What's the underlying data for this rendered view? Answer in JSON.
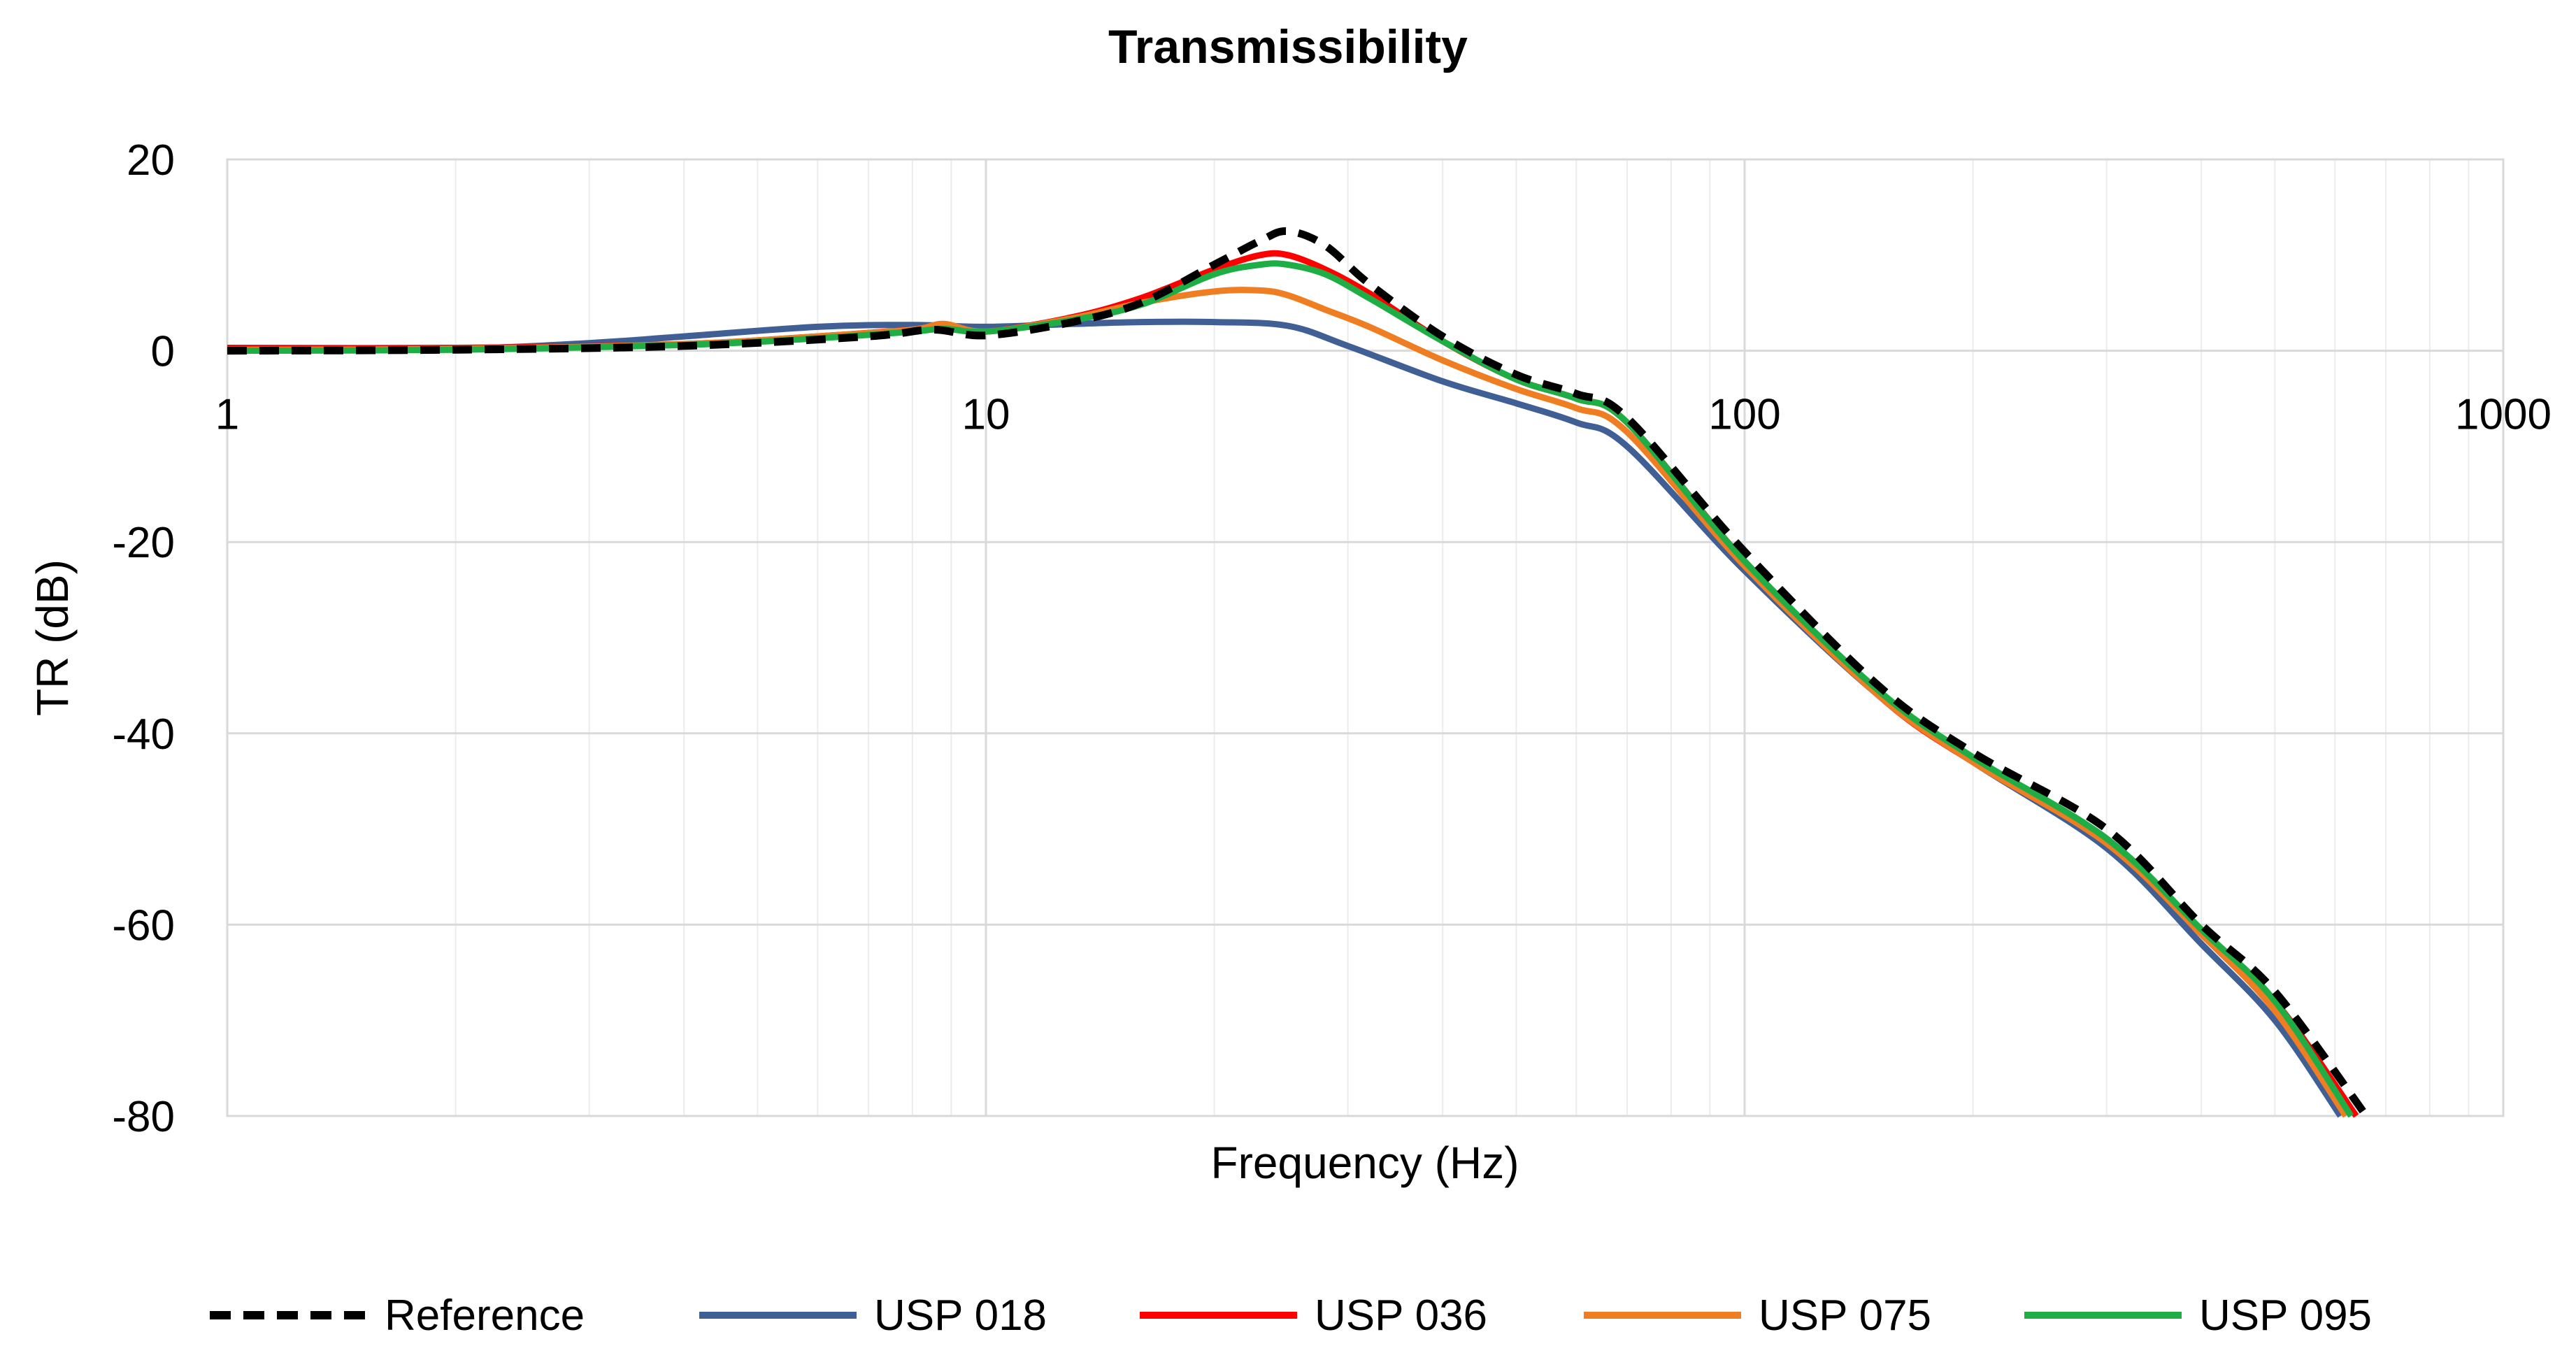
{
  "chart_data": {
    "type": "line",
    "title": "Transmissibility",
    "xlabel": "Frequency (Hz)",
    "ylabel": "TR (dB)",
    "xscale": "log",
    "xlim": [
      1,
      1000
    ],
    "ylim": [
      -80,
      20
    ],
    "x_ticks": [
      1,
      10,
      100,
      1000
    ],
    "x_tick_labels": [
      "1",
      "10",
      "100",
      "1000"
    ],
    "y_ticks": [
      20,
      0,
      -20,
      -40,
      -60,
      -80
    ],
    "y_tick_labels": [
      "20",
      "0",
      "-20",
      "-40",
      "-60",
      "-80"
    ],
    "grid": true,
    "legend_position": "bottom",
    "series": [
      {
        "name": "Reference",
        "color": "#000000",
        "style": "dashed",
        "x": [
          1,
          2,
          4,
          7,
          8.5,
          10,
          13,
          16,
          20,
          23,
          25,
          28,
          32,
          40,
          50,
          60,
          70,
          100,
          150,
          200,
          300,
          400,
          500,
          660
        ],
        "y": [
          0,
          0.1,
          0.5,
          1.5,
          2.2,
          1.6,
          3,
          5,
          9,
          11.5,
          12.5,
          11,
          7,
          1.5,
          -2.5,
          -4.5,
          -7,
          -21,
          -35,
          -42,
          -50,
          -60,
          -67,
          -80
        ]
      },
      {
        "name": "USP 018",
        "color": "#3f5f95",
        "style": "solid",
        "x": [
          1,
          2,
          3,
          4,
          6,
          8,
          10,
          13,
          16,
          20,
          25,
          30,
          40,
          50,
          60,
          70,
          100,
          150,
          200,
          300,
          400,
          500,
          610
        ],
        "y": [
          0,
          0.2,
          0.8,
          1.5,
          2.5,
          2.7,
          2.5,
          2.8,
          3,
          3,
          2.6,
          0.5,
          -3.2,
          -5.5,
          -7.5,
          -10,
          -23,
          -36,
          -43,
          -52,
          -62,
          -70,
          -80
        ]
      },
      {
        "name": "USP 036",
        "color": "#ff0000",
        "style": "solid",
        "x": [
          1,
          2,
          4,
          6,
          8,
          8.8,
          10,
          13,
          16,
          20,
          23,
          25,
          28,
          32,
          40,
          50,
          60,
          70,
          100,
          150,
          200,
          300,
          400,
          500,
          640
        ],
        "y": [
          0.3,
          0.3,
          0.7,
          1.5,
          2.2,
          2.5,
          2,
          3.5,
          5.5,
          8.5,
          10,
          10,
          8.5,
          6,
          1,
          -3,
          -5,
          -7.5,
          -22,
          -36,
          -43,
          -51,
          -61,
          -68,
          -80
        ]
      },
      {
        "name": "USP 075",
        "color": "#ef7d22",
        "style": "solid",
        "x": [
          1,
          2,
          4,
          6,
          8,
          8.8,
          10,
          13,
          16,
          20,
          23,
          25,
          28,
          32,
          40,
          50,
          60,
          70,
          100,
          150,
          200,
          300,
          400,
          500,
          620
        ],
        "y": [
          0.1,
          0.2,
          0.7,
          1.5,
          2.2,
          2.8,
          2,
          3.4,
          5,
          6.2,
          6.3,
          5.8,
          4.3,
          2.5,
          -1,
          -4,
          -6,
          -8.5,
          -22.5,
          -36,
          -43,
          -51.5,
          -61,
          -69,
          -80
        ]
      },
      {
        "name": "USP 095",
        "color": "#1fae45",
        "style": "solid",
        "x": [
          1,
          2,
          4,
          6,
          8,
          8.8,
          10,
          13,
          16,
          20,
          23,
          25,
          28,
          32,
          40,
          50,
          60,
          70,
          100,
          150,
          200,
          300,
          400,
          500,
          630
        ],
        "y": [
          0,
          0.1,
          0.6,
          1.3,
          2.0,
          2.3,
          2,
          3.2,
          4.8,
          8,
          9,
          9,
          8,
          5.5,
          1,
          -3,
          -5,
          -7.5,
          -22,
          -35.5,
          -42.5,
          -51,
          -60.5,
          -68,
          -80
        ]
      }
    ]
  }
}
